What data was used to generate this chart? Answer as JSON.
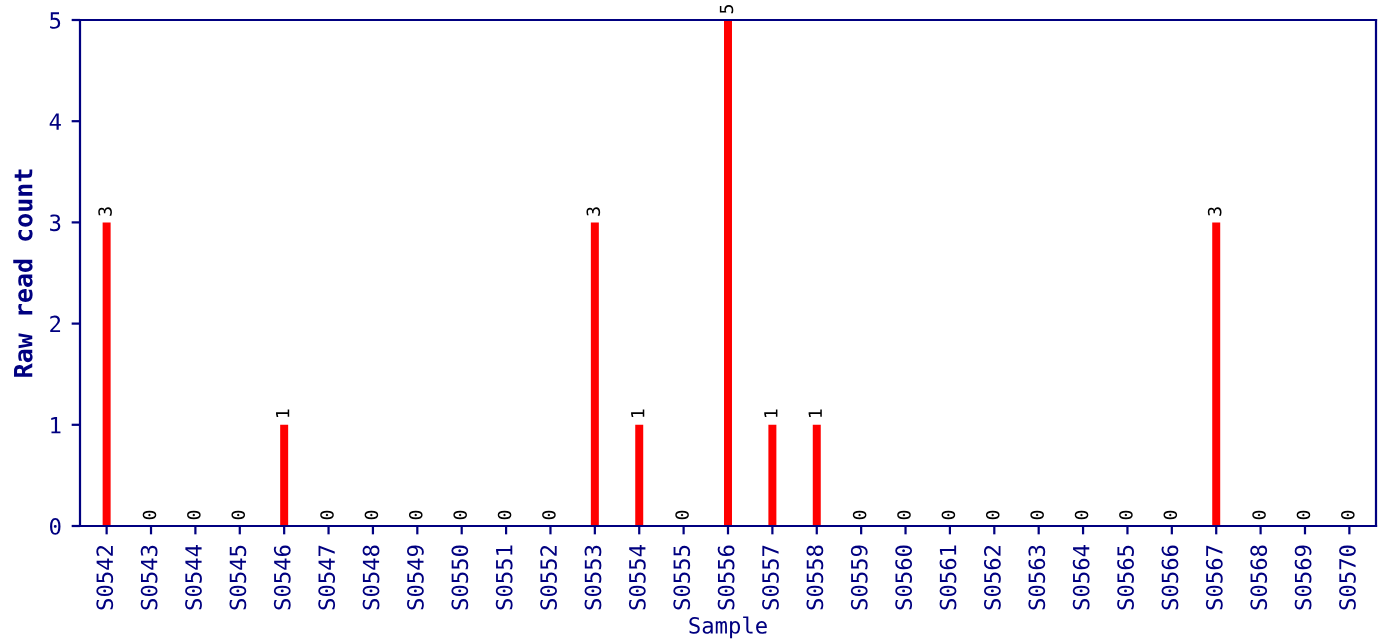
{
  "chart_data": {
    "type": "bar",
    "xlabel": "Sample",
    "ylabel": "Raw read count",
    "categories": [
      "S0542",
      "S0543",
      "S0544",
      "S0545",
      "S0546",
      "S0547",
      "S0548",
      "S0549",
      "S0550",
      "S0551",
      "S0552",
      "S0553",
      "S0554",
      "S0555",
      "S0556",
      "S0557",
      "S0558",
      "S0559",
      "S0560",
      "S0561",
      "S0562",
      "S0563",
      "S0564",
      "S0565",
      "S0566",
      "S0567",
      "S0568",
      "S0569",
      "S0570"
    ],
    "values": [
      3,
      0,
      0,
      0,
      1,
      0,
      0,
      0,
      0,
      0,
      0,
      3,
      1,
      0,
      5,
      1,
      1,
      0,
      0,
      0,
      0,
      0,
      0,
      0,
      0,
      3,
      0,
      0,
      0
    ],
    "color": "#ff0000",
    "ylim": [
      0,
      5
    ],
    "yticks": [
      0,
      1,
      2,
      3,
      4,
      5
    ],
    "grid": false,
    "data_labels": true
  }
}
